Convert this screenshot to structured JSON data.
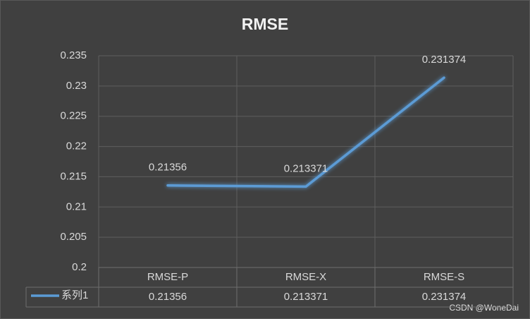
{
  "chart_data": {
    "type": "line",
    "title": "RMSE",
    "categories": [
      "RMSE-P",
      "RMSE-X",
      "RMSE-S"
    ],
    "series": [
      {
        "name": "系列1",
        "color": "#5b9bd5",
        "values": [
          0.21356,
          0.213371,
          0.231374
        ]
      }
    ],
    "ylim": [
      0.2,
      0.235
    ],
    "yticks": [
      0.2,
      0.205,
      0.21,
      0.215,
      0.22,
      0.225,
      0.23,
      0.235
    ],
    "grid": true,
    "data_table": true,
    "watermark": "CSDN @WoneDai"
  }
}
